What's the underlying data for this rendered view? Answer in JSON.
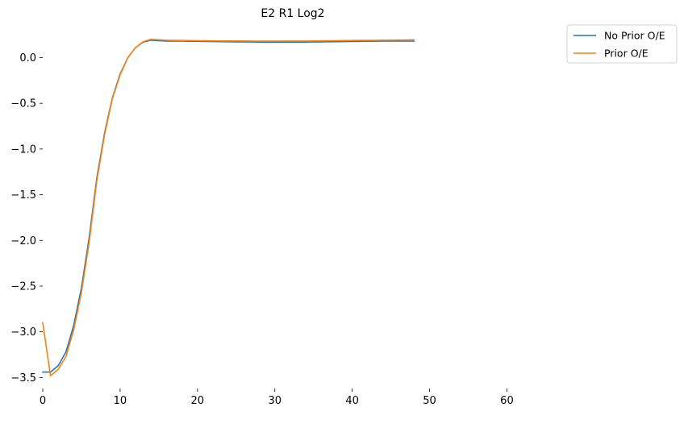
{
  "chart_data": {
    "type": "line",
    "title": "E2 R1 Log2",
    "xlabel": "",
    "ylabel": "",
    "xlim": [
      0,
      66
    ],
    "ylim": [
      -3.62,
      0.33
    ],
    "xticks": [
      0,
      10,
      20,
      30,
      40,
      50,
      60
    ],
    "yticks": [
      -3.5,
      -3.0,
      -2.5,
      -2.0,
      -1.5,
      -1.0,
      -0.5,
      0.0
    ],
    "ytick_labels": [
      "−3.5",
      "−3.0",
      "−2.5",
      "−2.0",
      "−1.5",
      "−1.0",
      "−0.5",
      "0.0"
    ],
    "grid": false,
    "legend_position": "top-right",
    "x": [
      0,
      1,
      2,
      3,
      4,
      5,
      6,
      7,
      8,
      9,
      10,
      11,
      12,
      13,
      14,
      15,
      16,
      17,
      18,
      19,
      20,
      21,
      22,
      23,
      24,
      25,
      26,
      27,
      28,
      29,
      30,
      31,
      32,
      33,
      34,
      35,
      36,
      37,
      38,
      39,
      40,
      41,
      42,
      43,
      44,
      45,
      46,
      47,
      48
    ],
    "series": [
      {
        "name": "No Prior O/E",
        "color": "#1f77b4",
        "values": [
          -3.44,
          -3.44,
          -3.37,
          -3.22,
          -2.93,
          -2.52,
          -1.97,
          -1.31,
          -0.82,
          -0.44,
          -0.18,
          0.0,
          0.11,
          0.17,
          0.19,
          0.185,
          0.18,
          0.18,
          0.18,
          0.178,
          0.178,
          0.176,
          0.175,
          0.174,
          0.173,
          0.172,
          0.172,
          0.171,
          0.17,
          0.17,
          0.17,
          0.17,
          0.17,
          0.17,
          0.17,
          0.171,
          0.172,
          0.173,
          0.174,
          0.175,
          0.176,
          0.177,
          0.178,
          0.179,
          0.18,
          0.18,
          0.18,
          0.18,
          0.18
        ]
      },
      {
        "name": "Prior O/E",
        "color": "#ff7f0e",
        "values": [
          -2.9,
          -3.48,
          -3.41,
          -3.27,
          -2.98,
          -2.57,
          -2.02,
          -1.34,
          -0.84,
          -0.45,
          -0.19,
          0.0,
          0.11,
          0.175,
          0.2,
          0.195,
          0.19,
          0.188,
          0.187,
          0.186,
          0.185,
          0.184,
          0.183,
          0.182,
          0.182,
          0.182,
          0.182,
          0.181,
          0.18,
          0.18,
          0.18,
          0.181,
          0.181,
          0.181,
          0.181,
          0.182,
          0.183,
          0.184,
          0.185,
          0.186,
          0.187,
          0.188,
          0.188,
          0.189,
          0.19,
          0.191,
          0.192,
          0.193,
          0.194
        ]
      }
    ]
  }
}
